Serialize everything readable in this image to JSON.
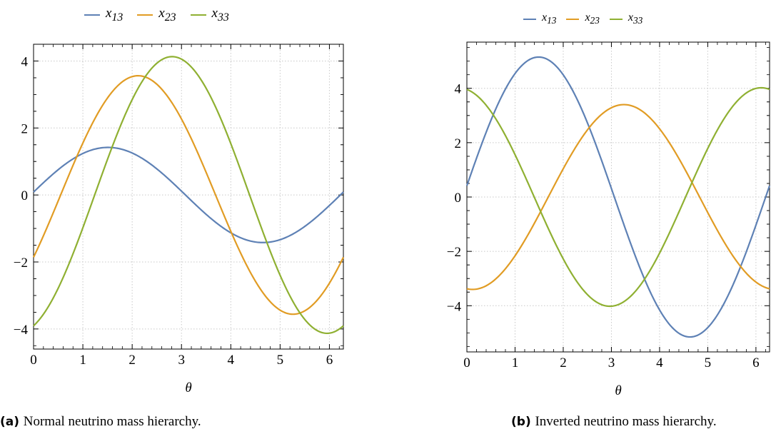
{
  "figures": [
    {
      "caption_label": "(a)",
      "caption_text": "Normal neutrino mass hierarchy."
    },
    {
      "caption_label": "(b)",
      "caption_text": "Inverted neutrino mass hierarchy."
    }
  ],
  "chart_data": [
    {
      "type": "line",
      "title": "",
      "xlabel": "θ",
      "ylabel": "",
      "xlim": [
        0,
        6.2832
      ],
      "ylim": [
        -4.6,
        4.5
      ],
      "xticks": [
        "0",
        "1",
        "2",
        "3",
        "4",
        "5",
        "6"
      ],
      "yticks": [
        "−4",
        "−2",
        "0",
        "2",
        "4"
      ],
      "grid": true,
      "legend_position": "top",
      "series": [
        {
          "name": "x13",
          "color": "#5e81b5",
          "amplitude": 1.42,
          "phase": 1.51
        },
        {
          "name": "x23",
          "color": "#e19c24",
          "amplitude": 3.56,
          "phase": 2.12
        },
        {
          "name": "x33",
          "color": "#8fb032",
          "amplitude": 4.13,
          "phase": 2.81
        }
      ]
    },
    {
      "type": "line",
      "title": "",
      "xlabel": "θ",
      "ylabel": "",
      "xlim": [
        0,
        6.2832
      ],
      "ylim": [
        -5.7,
        5.7
      ],
      "xticks": [
        "0",
        "1",
        "2",
        "3",
        "4",
        "5",
        "6"
      ],
      "yticks": [
        "−4",
        "−2",
        "0",
        "2",
        "4"
      ],
      "grid": true,
      "legend_position": "top",
      "series": [
        {
          "name": "x13",
          "color": "#5e81b5",
          "amplitude": 5.15,
          "phase": 1.49
        },
        {
          "name": "x23",
          "color": "#e19c24",
          "amplitude": 3.4,
          "phase": 3.26
        },
        {
          "name": "x33",
          "color": "#8fb032",
          "amplitude": 4.02,
          "phase": 6.11
        }
      ]
    }
  ]
}
